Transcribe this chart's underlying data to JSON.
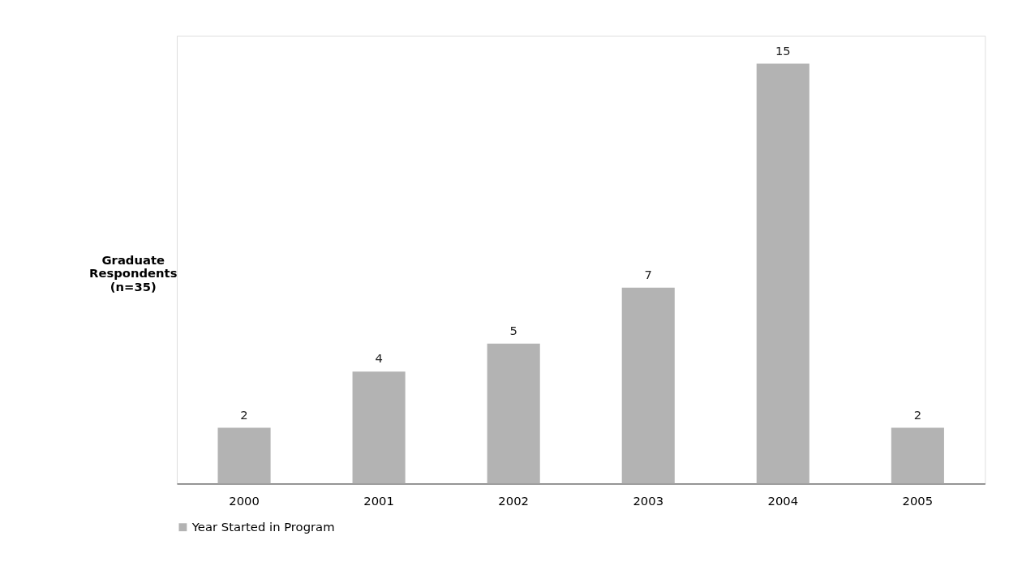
{
  "chart_data": {
    "type": "bar",
    "ylabel": "Graduate Respondents (n=35)",
    "categories": [
      "2000",
      "2001",
      "2002",
      "2003",
      "2004",
      "2005"
    ],
    "series": [
      {
        "name": "Year Started in Program",
        "color": "#b3b3b3",
        "values": [
          2,
          4,
          5,
          7,
          15,
          2
        ]
      }
    ],
    "data_labels": true,
    "legend": "bottom",
    "grid": false
  }
}
